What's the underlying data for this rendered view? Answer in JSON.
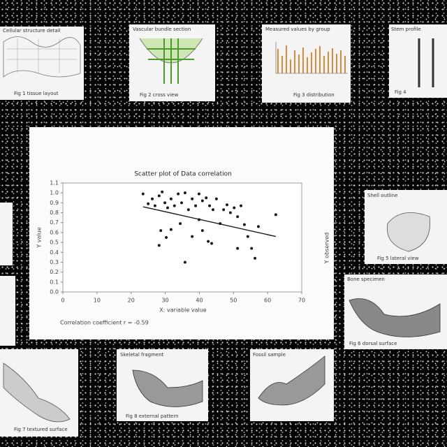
{
  "chart_data": {
    "type": "scatter",
    "title": "Scatter plot of Data correlation",
    "x_label": "X: variable value",
    "y_label": "Y value",
    "y2_label": "Y observed",
    "annotation": "Correlation coefficient r = -0.59",
    "xlim": [
      0,
      70
    ],
    "xticks": [
      0,
      10,
      20,
      30,
      40,
      50,
      60,
      70
    ],
    "ylim": [
      0,
      1.1
    ],
    "yticks": [
      {
        "value": 0,
        "label": "0.0"
      },
      0.1,
      0.2,
      0.3,
      0.4,
      0.5,
      0.6,
      0.7,
      0.8,
      0.9,
      {
        "value": 1,
        "label": "1.0"
      },
      1.1
    ],
    "series": [
      {
        "color": "#1a1a1a",
        "x": [
          23.5,
          25.0,
          26.2,
          27.0,
          28.2,
          29.1,
          29.9,
          30.7,
          31.7,
          32.7,
          33.8,
          34.8,
          35.8,
          36.8,
          37.9,
          38.9,
          39.9,
          40.9,
          42.0,
          43.0,
          44.0,
          45.0,
          46.1,
          47.1,
          48.1,
          49.1,
          50.2,
          51.2,
          52.2,
          53.2,
          54.2,
          55.3,
          56.3,
          57.3,
          62.4,
          28.2,
          30.3,
          31.7,
          34.4,
          35.8,
          37.9,
          39.9,
          40.9,
          42.6,
          43.6,
          51.2,
          28.7
        ],
        "values": [
          0.99,
          0.89,
          0.94,
          0.87,
          0.97,
          1.01,
          0.9,
          0.85,
          0.94,
          0.87,
          0.99,
          0.9,
          1.0,
          0.83,
          0.94,
          0.87,
          0.99,
          0.92,
          0.95,
          0.87,
          0.83,
          0.94,
          0.69,
          0.83,
          0.88,
          0.8,
          0.85,
          0.76,
          0.87,
          0.68,
          0.56,
          0.44,
          0.34,
          0.66,
          0.78,
          0.47,
          0.55,
          0.63,
          0.69,
          0.3,
          0.56,
          0.73,
          0.62,
          0.51,
          0.49,
          0.44,
          0.62
        ]
      },
      {
        "color": "#1a1a1a",
        "x": [
          23.5,
          62.4
        ],
        "values": [
          0.86,
          0.56
        ]
      }
    ]
  },
  "thumbnails": [
    {
      "title": "Cellular structure detail",
      "caption": "Fig 1 tissue layout"
    },
    {
      "title": "Vascular bundle section",
      "caption": "Fig 2 cross view"
    },
    {
      "title": "Measured values by group",
      "caption": "Fig 3 distribution"
    },
    {
      "title": "Stem profile",
      "caption": "Fig 4"
    },
    {
      "title": "Shell outline",
      "caption": "Fig 5 lateral view"
    },
    {
      "title": "Bone specimen",
      "caption": "Fig 6 dorsal surface"
    },
    {
      "title": "Skeletal fragment",
      "caption": "Fig 7 textured surface"
    },
    {
      "title": "Fossil sample",
      "caption": "Fig 8 external pattern"
    }
  ]
}
